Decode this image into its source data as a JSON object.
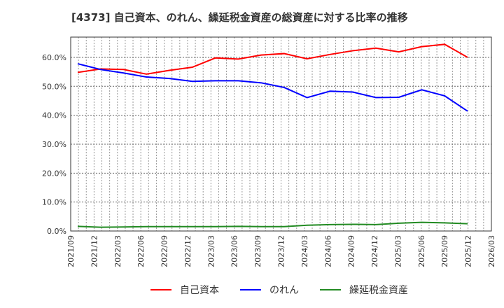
{
  "chart_data": {
    "type": "line",
    "title": "[4373]  自己資本、のれん、繰延税金資産の総資産に対する比率の推移",
    "xlabel": "",
    "ylabel": "",
    "ylim": [
      0,
      67
    ],
    "yticks": [
      0,
      10,
      20,
      30,
      40,
      50,
      60
    ],
    "ytick_labels": [
      "0.0%",
      "10.0%",
      "20.0%",
      "30.0%",
      "40.0%",
      "50.0%",
      "60.0%"
    ],
    "xtick_labels": [
      "2021/09",
      "2021/12",
      "2022/03",
      "2022/06",
      "2022/09",
      "2022/12",
      "2023/03",
      "2023/06",
      "2023/09",
      "2023/12",
      "2024/03",
      "2024/06",
      "2024/09",
      "2024/12",
      "2025/03",
      "2025/06",
      "2025/09",
      "2025/12",
      "2026/03"
    ],
    "grid": true,
    "legend": "bottom",
    "series": [
      {
        "name": "自己資本",
        "color": "#ff0000",
        "values": [
          54.8,
          56.0,
          55.8,
          54.2,
          55.5,
          56.6,
          59.8,
          59.4,
          60.8,
          61.3,
          59.5,
          61.0,
          62.3,
          63.2,
          61.9,
          63.7,
          64.5,
          60.0
        ]
      },
      {
        "name": "のれん",
        "color": "#0000ff",
        "values": [
          57.8,
          55.8,
          54.6,
          53.2,
          52.7,
          51.7,
          51.9,
          51.9,
          51.2,
          49.6,
          46.1,
          48.3,
          48.0,
          46.1,
          46.2,
          48.8,
          46.7,
          41.4
        ]
      },
      {
        "name": "繰延税金資産",
        "color": "#228b22",
        "values": [
          1.6,
          1.3,
          1.4,
          1.5,
          1.5,
          1.5,
          1.5,
          1.6,
          1.5,
          1.5,
          2.0,
          2.2,
          2.3,
          2.2,
          2.7,
          3.0,
          2.8,
          2.5
        ]
      }
    ]
  }
}
